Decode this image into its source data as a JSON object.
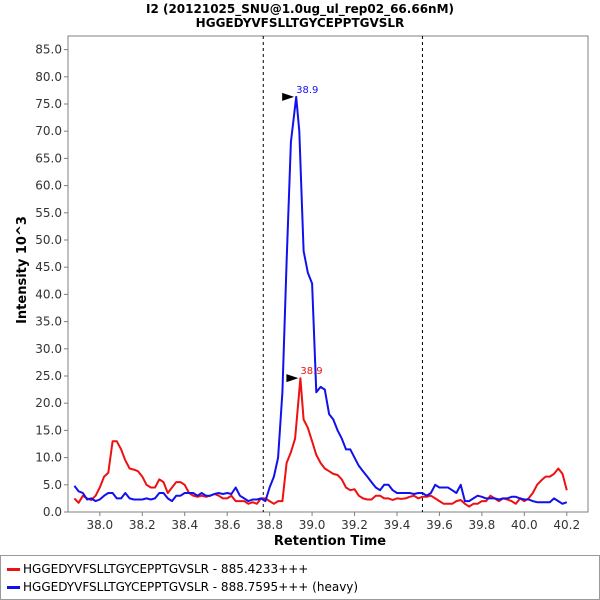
{
  "chart_data": {
    "type": "line",
    "title": "I2 (20121025_SNU@1.0ug_ul_rep02_66.66nM)",
    "subtitle": "HGGEDYVFSLLTGYCEPPTGVSLR",
    "xlabel": "Retention Time",
    "ylabel": "Intensity  10^3",
    "xlim": [
      37.85,
      40.3
    ],
    "ylim": [
      0,
      87.5
    ],
    "x_ticks": [
      "38.0",
      "38.2",
      "38.4",
      "38.6",
      "38.8",
      "39.0",
      "39.2",
      "39.4",
      "39.6",
      "39.8",
      "40.0",
      "40.2"
    ],
    "y_ticks": [
      "0.0",
      "5.0",
      "10.0",
      "15.0",
      "20.0",
      "25.0",
      "30.0",
      "35.0",
      "40.0",
      "45.0",
      "50.0",
      "55.0",
      "60.0",
      "65.0",
      "70.0",
      "75.0",
      "80.0",
      "85.0"
    ],
    "integration_boundaries": [
      38.77,
      39.52
    ],
    "grid": false,
    "legend_position": "bottom",
    "series": [
      {
        "name": "HGGEDYVFSLLTGYCEPPTGVSLR - 885.4233+++",
        "color": "#ee1111",
        "peak_label": "38.9",
        "peak": [
          38.945,
          24.6
        ],
        "x": [
          37.88,
          37.9,
          37.92,
          37.94,
          37.96,
          37.98,
          38.0,
          38.02,
          38.04,
          38.06,
          38.08,
          38.1,
          38.12,
          38.14,
          38.16,
          38.18,
          38.2,
          38.22,
          38.24,
          38.26,
          38.28,
          38.3,
          38.32,
          38.34,
          38.36,
          38.38,
          38.4,
          38.42,
          38.44,
          38.46,
          38.48,
          38.5,
          38.52,
          38.54,
          38.56,
          38.58,
          38.6,
          38.62,
          38.64,
          38.66,
          38.68,
          38.7,
          38.72,
          38.74,
          38.76,
          38.78,
          38.8,
          38.82,
          38.84,
          38.86,
          38.88,
          38.9,
          38.92,
          38.945,
          38.96,
          38.98,
          39.0,
          39.02,
          39.04,
          39.06,
          39.08,
          39.1,
          39.12,
          39.14,
          39.16,
          39.18,
          39.2,
          39.22,
          39.24,
          39.26,
          39.28,
          39.3,
          39.32,
          39.34,
          39.36,
          39.38,
          39.4,
          39.42,
          39.44,
          39.46,
          39.48,
          39.5,
          39.52,
          39.54,
          39.56,
          39.58,
          39.6,
          39.62,
          39.64,
          39.66,
          39.68,
          39.7,
          39.72,
          39.74,
          39.76,
          39.78,
          39.8,
          39.82,
          39.84,
          39.86,
          39.88,
          39.9,
          39.92,
          39.94,
          39.96,
          39.98,
          40.0,
          40.02,
          40.04,
          40.06,
          40.08,
          40.1,
          40.12,
          40.14,
          40.16,
          40.18,
          40.2
        ],
        "y": [
          2.5,
          1.7,
          3.0,
          2.5,
          2.2,
          3.0,
          4.5,
          6.5,
          7.2,
          13.0,
          13.0,
          11.5,
          9.5,
          8.0,
          7.8,
          7.5,
          6.5,
          5.0,
          4.5,
          4.5,
          6.0,
          5.5,
          3.5,
          4.5,
          5.5,
          5.5,
          5.0,
          3.5,
          3.0,
          2.8,
          3.0,
          2.8,
          3.0,
          3.3,
          3.0,
          2.5,
          2.5,
          3.0,
          2.0,
          2.0,
          2.0,
          1.5,
          1.8,
          1.5,
          2.5,
          2.5,
          2.0,
          1.5,
          2.0,
          2.0,
          9.0,
          11.0,
          13.5,
          24.6,
          17.0,
          15.5,
          13.0,
          10.5,
          9.0,
          8.0,
          7.5,
          7.0,
          6.8,
          6.0,
          4.5,
          4.0,
          4.2,
          3.0,
          2.5,
          2.3,
          2.3,
          3.0,
          3.0,
          2.5,
          2.5,
          2.2,
          2.5,
          2.4,
          2.5,
          2.8,
          3.0,
          2.5,
          2.8,
          2.8,
          3.0,
          2.5,
          2.0,
          1.5,
          1.5,
          1.5,
          2.0,
          2.2,
          1.5,
          1.0,
          1.5,
          1.5,
          2.0,
          2.0,
          3.0,
          2.5,
          2.0,
          2.5,
          2.3,
          2.0,
          1.5,
          2.5,
          2.0,
          2.5,
          3.5,
          5.0,
          5.8,
          6.5,
          6.5,
          7.0,
          8.0,
          7.0,
          4.0
        ]
      },
      {
        "name": "HGGEDYVFSLLTGYCEPPTGVSLR - 888.7595+++ (heavy)",
        "color": "#1111ee",
        "peak_label": "38.9",
        "peak": [
          38.925,
          76.3
        ],
        "x": [
          37.88,
          37.9,
          37.92,
          37.94,
          37.96,
          37.98,
          38.0,
          38.02,
          38.04,
          38.06,
          38.08,
          38.1,
          38.12,
          38.14,
          38.16,
          38.18,
          38.2,
          38.22,
          38.24,
          38.26,
          38.28,
          38.3,
          38.32,
          38.34,
          38.36,
          38.38,
          38.4,
          38.42,
          38.44,
          38.46,
          38.48,
          38.5,
          38.52,
          38.54,
          38.56,
          38.58,
          38.6,
          38.62,
          38.64,
          38.66,
          38.68,
          38.7,
          38.72,
          38.74,
          38.76,
          38.78,
          38.8,
          38.82,
          38.84,
          38.86,
          38.88,
          38.9,
          38.925,
          38.94,
          38.96,
          38.98,
          39.0,
          39.02,
          39.04,
          39.06,
          39.08,
          39.1,
          39.12,
          39.14,
          39.16,
          39.18,
          39.2,
          39.22,
          39.24,
          39.26,
          39.28,
          39.3,
          39.32,
          39.34,
          39.36,
          39.38,
          39.4,
          39.42,
          39.44,
          39.46,
          39.48,
          39.5,
          39.52,
          39.54,
          39.56,
          39.58,
          39.6,
          39.62,
          39.64,
          39.66,
          39.68,
          39.7,
          39.72,
          39.74,
          39.76,
          39.78,
          39.8,
          39.82,
          39.84,
          39.86,
          39.88,
          39.9,
          39.92,
          39.94,
          39.96,
          39.98,
          40.0,
          40.02,
          40.04,
          40.06,
          40.08,
          40.1,
          40.12,
          40.14,
          40.16,
          40.18,
          40.2
        ],
        "y": [
          4.8,
          3.8,
          3.5,
          2.3,
          2.5,
          2.0,
          2.3,
          3.0,
          3.5,
          3.5,
          2.5,
          2.5,
          3.5,
          2.5,
          2.3,
          2.3,
          2.3,
          2.5,
          2.3,
          2.5,
          3.5,
          3.5,
          2.5,
          2.0,
          3.0,
          3.0,
          3.5,
          3.5,
          3.5,
          3.0,
          3.5,
          3.0,
          3.0,
          3.3,
          3.5,
          3.3,
          3.5,
          3.3,
          4.5,
          3.0,
          2.5,
          2.0,
          2.3,
          2.3,
          2.5,
          2.0,
          4.5,
          6.5,
          10.0,
          22.0,
          46.0,
          68.0,
          76.3,
          70.0,
          48.0,
          44.0,
          42.0,
          22.0,
          23.0,
          22.5,
          18.0,
          17.0,
          15.0,
          13.5,
          11.5,
          11.5,
          10.0,
          8.5,
          7.5,
          6.5,
          5.5,
          4.5,
          4.0,
          5.0,
          5.0,
          4.0,
          3.5,
          3.5,
          3.5,
          3.5,
          3.3,
          3.5,
          3.5,
          3.0,
          3.5,
          5.0,
          4.5,
          4.5,
          4.5,
          4.0,
          3.5,
          5.0,
          2.0,
          2.0,
          2.5,
          3.0,
          2.8,
          2.5,
          2.5,
          2.5,
          2.3,
          2.5,
          2.5,
          2.8,
          2.8,
          2.5,
          2.3,
          2.3,
          2.0,
          1.8,
          1.8,
          1.8,
          1.8,
          2.5,
          2.0,
          1.5,
          1.8
        ]
      }
    ]
  }
}
